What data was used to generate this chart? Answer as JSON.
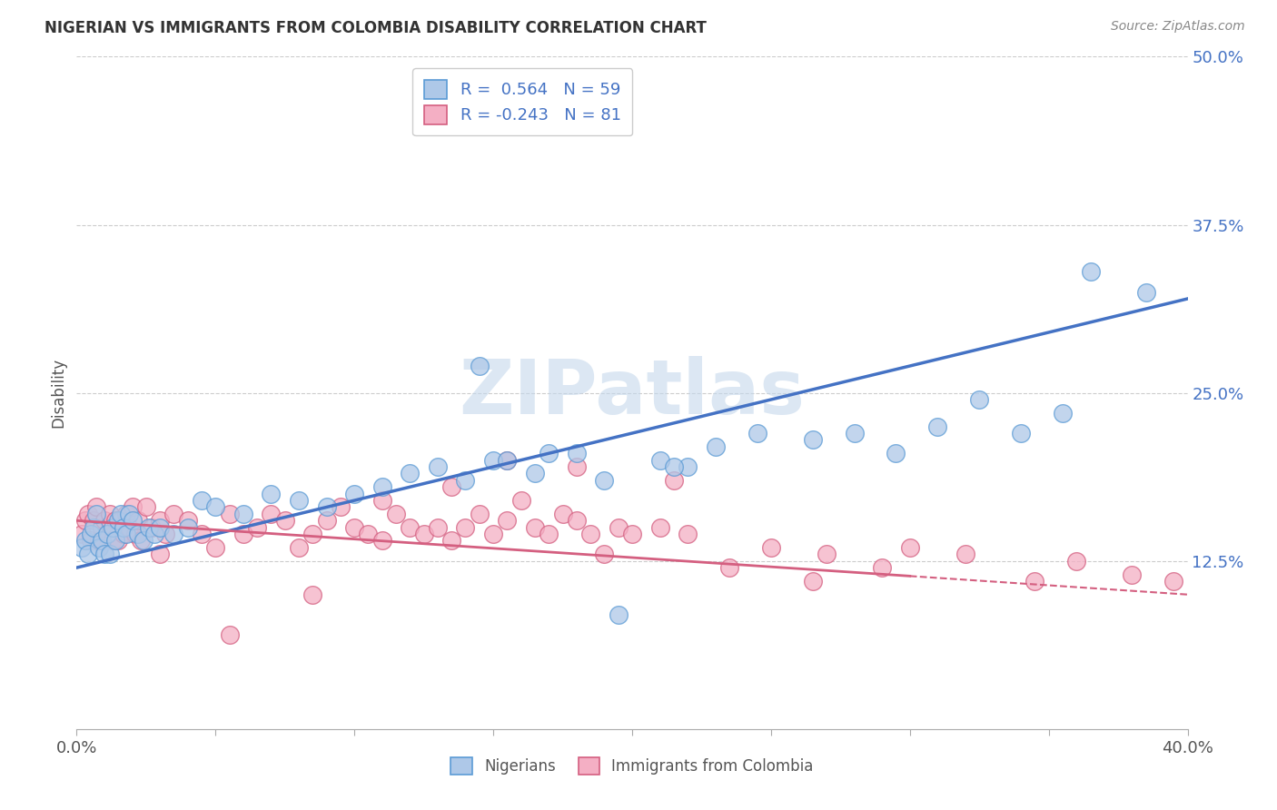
{
  "title": "NIGERIAN VS IMMIGRANTS FROM COLOMBIA DISABILITY CORRELATION CHART",
  "source_text": "Source: ZipAtlas.com",
  "ylabel": "Disability",
  "watermark": "ZIPatlas",
  "xlim": [
    0.0,
    40.0
  ],
  "ylim": [
    0.0,
    50.0
  ],
  "yticks": [
    12.5,
    25.0,
    37.5,
    50.0
  ],
  "xticks": [
    0.0,
    5.0,
    10.0,
    15.0,
    20.0,
    25.0,
    30.0,
    35.0,
    40.0
  ],
  "blue_R": 0.564,
  "blue_N": 59,
  "pink_R": -0.243,
  "pink_N": 81,
  "blue_color": "#aec8e8",
  "blue_edge": "#5b9bd5",
  "blue_line": "#4472c4",
  "pink_color": "#f4afc4",
  "pink_edge": "#d45f80",
  "pink_line": "#d45f80",
  "legend_label_blue": "Nigerians",
  "legend_label_pink": "Immigrants from Colombia",
  "blue_line_x0": 0.0,
  "blue_line_y0": 12.0,
  "blue_line_x1": 40.0,
  "blue_line_y1": 32.0,
  "pink_line_x0": 0.0,
  "pink_line_y0": 15.5,
  "pink_line_x1": 40.0,
  "pink_line_y1": 10.0,
  "blue_x": [
    0.2,
    0.3,
    0.4,
    0.5,
    0.6,
    0.7,
    0.8,
    0.9,
    1.0,
    1.1,
    1.2,
    1.3,
    1.4,
    1.5,
    1.6,
    1.7,
    1.8,
    1.9,
    2.0,
    2.2,
    2.4,
    2.6,
    2.8,
    3.0,
    3.5,
    4.0,
    4.5,
    5.0,
    6.0,
    7.0,
    8.0,
    9.0,
    10.0,
    11.0,
    12.0,
    13.0,
    14.0,
    15.0,
    16.5,
    18.0,
    19.5,
    21.0,
    22.0,
    23.0,
    24.5,
    26.5,
    28.0,
    29.5,
    31.0,
    32.5,
    34.0,
    35.5,
    36.5,
    38.5,
    14.5,
    15.5,
    17.0,
    19.0,
    21.5
  ],
  "blue_y": [
    13.5,
    14.0,
    13.0,
    14.5,
    15.0,
    16.0,
    13.5,
    14.0,
    13.0,
    14.5,
    13.0,
    15.0,
    14.0,
    15.5,
    16.0,
    15.0,
    14.5,
    16.0,
    15.5,
    14.5,
    14.0,
    15.0,
    14.5,
    15.0,
    14.5,
    15.0,
    17.0,
    16.5,
    16.0,
    17.5,
    17.0,
    16.5,
    17.5,
    18.0,
    19.0,
    19.5,
    18.5,
    20.0,
    19.0,
    20.5,
    8.5,
    20.0,
    19.5,
    21.0,
    22.0,
    21.5,
    22.0,
    20.5,
    22.5,
    24.5,
    22.0,
    23.5,
    34.0,
    32.5,
    27.0,
    20.0,
    20.5,
    18.5,
    19.5
  ],
  "pink_x": [
    0.2,
    0.3,
    0.4,
    0.5,
    0.6,
    0.7,
    0.8,
    0.9,
    1.0,
    1.1,
    1.2,
    1.3,
    1.4,
    1.5,
    1.6,
    1.7,
    1.8,
    1.9,
    2.0,
    2.1,
    2.2,
    2.3,
    2.5,
    2.7,
    3.0,
    3.2,
    3.5,
    4.0,
    4.5,
    5.0,
    5.5,
    6.0,
    6.5,
    7.0,
    7.5,
    8.0,
    8.5,
    9.0,
    9.5,
    10.0,
    10.5,
    11.0,
    11.5,
    12.0,
    12.5,
    13.0,
    13.5,
    14.0,
    14.5,
    15.0,
    15.5,
    16.0,
    16.5,
    17.0,
    17.5,
    18.0,
    18.5,
    19.0,
    19.5,
    20.0,
    21.0,
    22.0,
    23.5,
    25.0,
    27.0,
    29.0,
    30.0,
    32.0,
    34.5,
    36.0,
    38.0,
    39.5,
    3.0,
    5.5,
    8.5,
    11.0,
    13.5,
    15.5,
    18.0,
    21.5,
    26.5
  ],
  "pink_y": [
    14.5,
    15.5,
    16.0,
    14.0,
    15.5,
    16.5,
    14.0,
    15.0,
    15.5,
    14.5,
    16.0,
    14.0,
    15.5,
    14.0,
    15.5,
    14.5,
    16.0,
    15.0,
    16.5,
    14.5,
    15.5,
    14.0,
    16.5,
    15.0,
    15.5,
    14.5,
    16.0,
    15.5,
    14.5,
    13.5,
    16.0,
    14.5,
    15.0,
    16.0,
    15.5,
    13.5,
    14.5,
    15.5,
    16.5,
    15.0,
    14.5,
    14.0,
    16.0,
    15.0,
    14.5,
    15.0,
    14.0,
    15.0,
    16.0,
    14.5,
    15.5,
    17.0,
    15.0,
    14.5,
    16.0,
    15.5,
    14.5,
    13.0,
    15.0,
    14.5,
    15.0,
    14.5,
    12.0,
    13.5,
    13.0,
    12.0,
    13.5,
    13.0,
    11.0,
    12.5,
    11.5,
    11.0,
    13.0,
    7.0,
    10.0,
    17.0,
    18.0,
    20.0,
    19.5,
    18.5,
    11.0
  ]
}
